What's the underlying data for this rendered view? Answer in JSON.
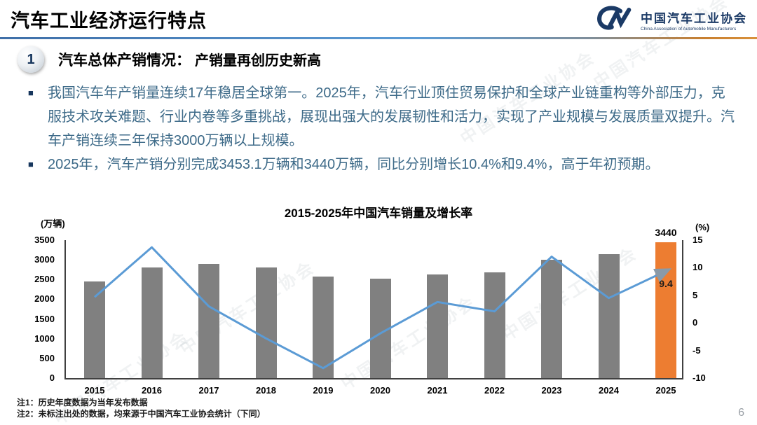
{
  "header": {
    "title": "汽车工业经济运行特点",
    "logo": {
      "org_cn": "中国汽车工业协会",
      "org_en": "China Association of Automobile Manufacturers"
    }
  },
  "section": {
    "number": "1",
    "heading": "汽车总体产销情况：",
    "subheading": "产销量再创历史新高"
  },
  "bullets": [
    "我国汽车年产销量连续17年稳居全球第一。2025年，汽车行业顶住贸易保护和全球产业链重构等外部压力，克服技术攻关难题、行业内卷等多重挑战，展现出强大的发展韧性和活力，实现了产业规模与发展质量双提升。汽车产销连续三年保持3000万辆以上规模。",
    "2025年，汽车产销分别完成3453.1万辆和3440万辆，同比分别增长10.4%和9.4%，高于年初预期。"
  ],
  "chart_data": {
    "type": "bar",
    "title": "2015-2025年中国汽车销量及增长率",
    "categories": [
      "2015",
      "2016",
      "2017",
      "2018",
      "2019",
      "2020",
      "2021",
      "2022",
      "2023",
      "2024",
      "2025"
    ],
    "series": [
      {
        "name": "销量(万辆)",
        "type": "bar",
        "values": [
          2460,
          2803,
          2888,
          2808,
          2577,
          2531,
          2628,
          2686,
          3009,
          3144,
          3440
        ]
      },
      {
        "name": "增长率(%)",
        "type": "line",
        "values": [
          4.7,
          13.7,
          3.0,
          -2.8,
          -8.2,
          -1.9,
          3.8,
          2.1,
          12.0,
          4.5,
          9.4
        ]
      }
    ],
    "left_axis": {
      "label": "(万辆)",
      "min": 0,
      "max": 3500,
      "ticks": [
        3500,
        3000,
        2500,
        2000,
        1500,
        1000,
        500,
        0
      ]
    },
    "right_axis": {
      "label": "(%)",
      "min": -10,
      "max": 15,
      "ticks": [
        15,
        10,
        5,
        0,
        -5,
        -10
      ]
    },
    "highlight_category": "2025",
    "bar_label": "3440",
    "line_label": "9.4",
    "legend": "none",
    "grid": "off",
    "colors": {
      "bar": "#808080",
      "bar_highlight": "#ED7D31",
      "line": "#5B9BD5",
      "bar_label": "#000000",
      "line_label": "#1a1a1a",
      "arrow": "#8a9aa8"
    }
  },
  "notes": [
    "注1：历史年度数据为当年发布数据",
    "注2：未标注出处的数据，均来源于中国汽车工业协会统计（下同）"
  ],
  "page_number": "6",
  "watermark": "中国汽车工业协会"
}
